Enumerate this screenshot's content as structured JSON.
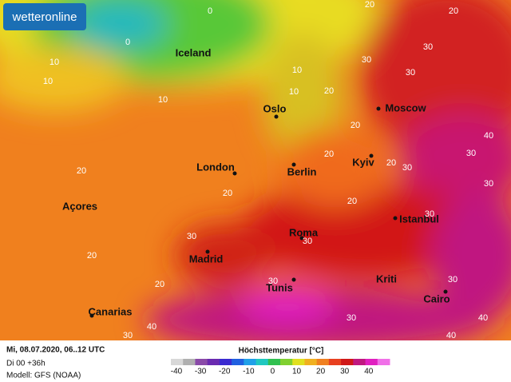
{
  "logo": "wetteronline",
  "map": {
    "cities": [
      "Iceland",
      "Oslo",
      "London",
      "Berlin",
      "Kyiv",
      "Moscow",
      "Açores",
      "Madrid",
      "Roma",
      "Istanbul",
      "Tunis",
      "Kriti",
      "Cairo",
      "Canarias"
    ],
    "contour_labels": [
      0,
      0,
      10,
      10,
      10,
      10,
      10,
      20,
      20,
      30,
      30,
      30,
      20,
      20,
      20,
      20,
      20,
      20,
      30,
      30,
      40,
      30,
      30,
      30,
      30,
      20,
      20,
      30,
      30,
      30,
      40,
      40,
      30,
      40,
      20
    ]
  },
  "footer": {
    "date": "Mi, 08.07.2020, 06..12 UTC",
    "run": "Di 00 +36h",
    "model": "Modell: GFS (NOAA)"
  },
  "legend": {
    "title": "Höchsttemperatur [°C]",
    "ticks": [
      -40,
      -30,
      -20,
      -10,
      0,
      10,
      20,
      30,
      40
    ],
    "colors": [
      "#d8d8d8",
      "#b0b0b0",
      "#8a4aa8",
      "#6a2ab0",
      "#3a2ad0",
      "#2060e0",
      "#20a0e8",
      "#20c8c0",
      "#30c050",
      "#80d030",
      "#e0e020",
      "#f0b020",
      "#f08020",
      "#e84020",
      "#d01818",
      "#c01880",
      "#e020c0",
      "#f070e8"
    ]
  }
}
